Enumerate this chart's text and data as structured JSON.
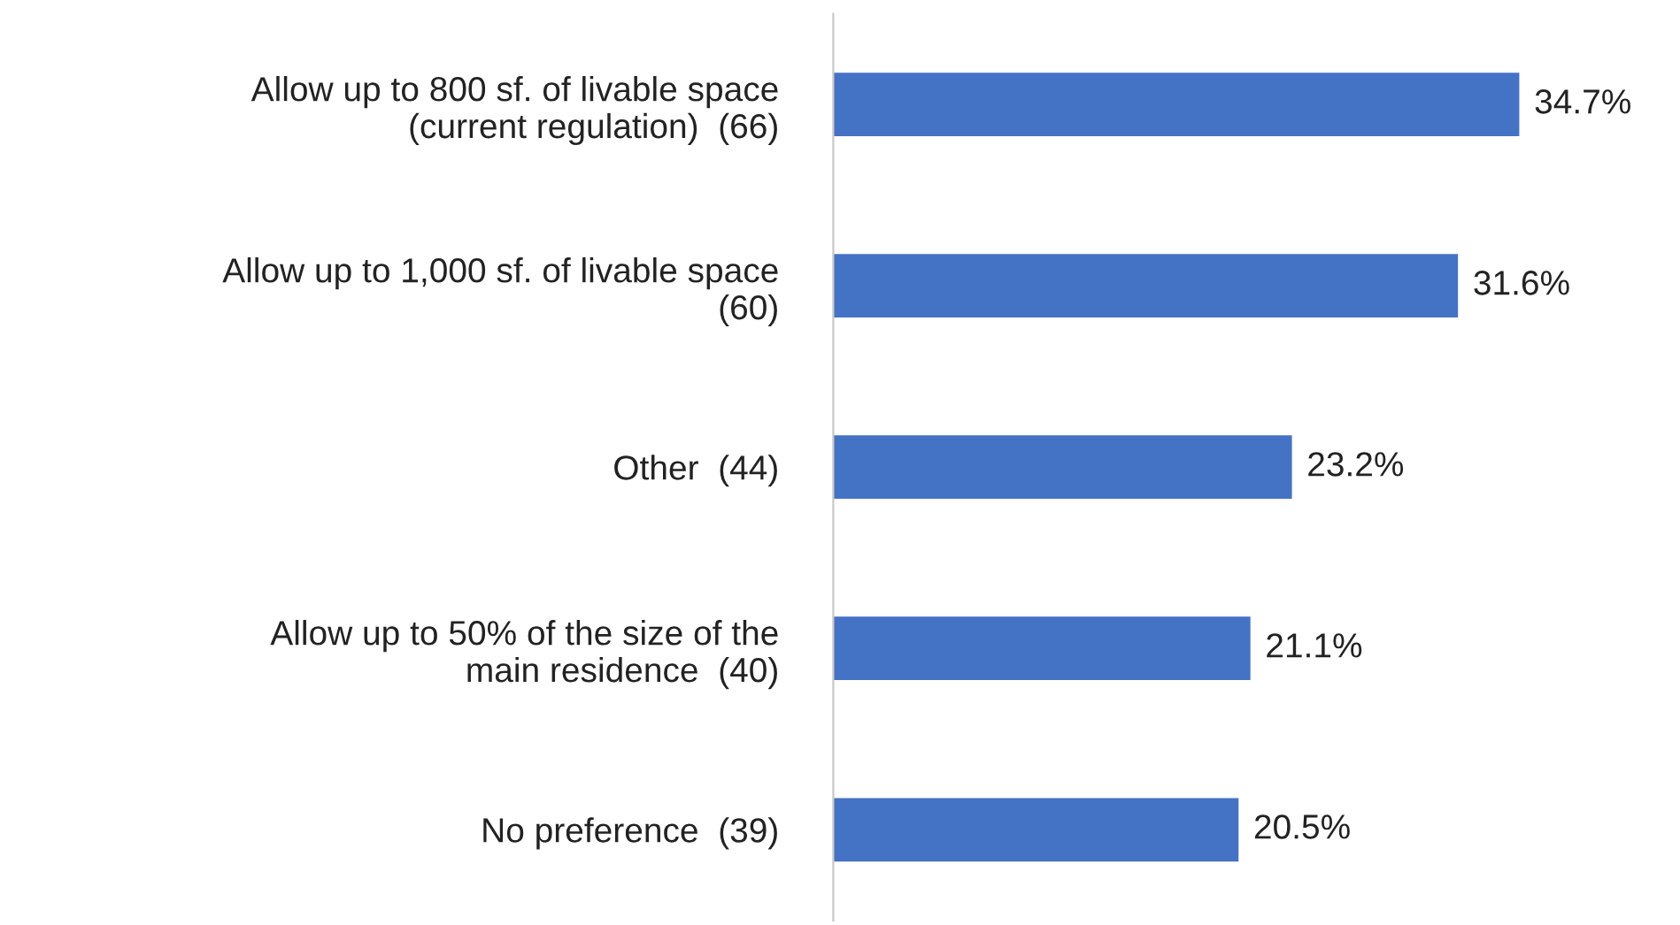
{
  "chart_data": {
    "type": "bar",
    "orientation": "horizontal",
    "categories": [
      "Allow up to 800 sf. of livable space\n(current regulation)  (66)",
      "Allow up to 1,000 sf. of livable space\n(60)",
      "Other  (44)",
      "Allow up to 50% of the size of the\nmain residence  (40)",
      "No preference  (39)"
    ],
    "values": [
      34.7,
      31.6,
      23.2,
      21.1,
      20.5
    ],
    "value_labels": [
      "34.7%",
      "31.6%",
      "23.2%",
      "21.1%",
      "20.5%"
    ],
    "color": "#4472c4",
    "grid": false,
    "legend": false
  }
}
